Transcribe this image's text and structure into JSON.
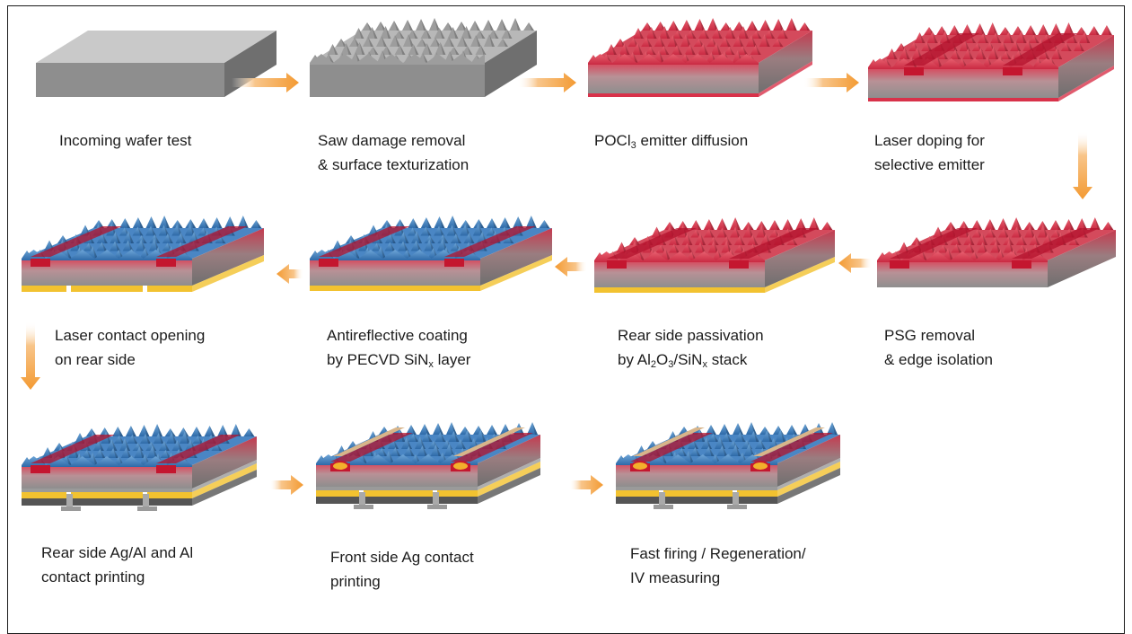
{
  "steps": [
    {
      "id": "incoming",
      "lines": [
        "Incoming wafer test"
      ]
    },
    {
      "id": "saw",
      "lines": [
        "Saw damage removal",
        "& surface texturization"
      ]
    },
    {
      "id": "pocl",
      "lines": [
        "POCl",
        "3",
        " emitter diffusion"
      ]
    },
    {
      "id": "laserdop",
      "lines": [
        "Laser doping for",
        "selective emitter"
      ]
    },
    {
      "id": "psg",
      "lines": [
        "PSG removal",
        "& edge isolation"
      ]
    },
    {
      "id": "rearpass",
      "lines": [
        "Rear side passivation",
        "by Al",
        "2",
        "O",
        "3",
        "/SiN",
        "x",
        " stack"
      ]
    },
    {
      "id": "arc",
      "lines": [
        "Antireflective coating",
        "by PECVD SiN",
        "x",
        " layer"
      ]
    },
    {
      "id": "lco",
      "lines": [
        "Laser contact opening",
        "on rear side"
      ]
    },
    {
      "id": "rearprint",
      "lines": [
        "Rear side Ag/Al and Al",
        "contact printing"
      ]
    },
    {
      "id": "frontprint",
      "lines": [
        "Front side Ag contact",
        "printing"
      ]
    },
    {
      "id": "firing",
      "lines": [
        "Fast firing / Regeneration/",
        "IV measuring"
      ]
    }
  ],
  "labels": {
    "incoming_1": "Incoming wafer test",
    "saw_1": "Saw damage removal",
    "saw_2": "& surface texturization",
    "pocl_a": "POCl",
    "pocl_sub": "3",
    "pocl_b": " emitter diffusion",
    "laserdop_1": "Laser doping for",
    "laserdop_2": "selective emitter",
    "psg_1": "PSG removal",
    "psg_2": "& edge isolation",
    "rearpass_1": "Rear side passivation",
    "rearpass_2a": "by Al",
    "rearpass_2s1": "2",
    "rearpass_2b": "O",
    "rearpass_2s2": "3",
    "rearpass_2c": "/SiN",
    "rearpass_2s3": "x",
    "rearpass_2d": " stack",
    "arc_1": "Antireflective coating",
    "arc_2a": "by PECVD SiN",
    "arc_2s": "x",
    "arc_2b": " layer",
    "lco_1": "Laser contact opening",
    "lco_2": "on rear side",
    "rearprint_1": "Rear side Ag/Al and Al",
    "rearprint_2": "contact printing",
    "frontprint_1": "Front side Ag contact",
    "frontprint_2": "printing",
    "firing_1": "Fast firing / Regeneration/",
    "firing_2": "IV measuring"
  },
  "colors": {
    "wafer_top": "#c9c9c9",
    "wafer_front": "#8e8e8e",
    "wafer_side": "#6f6f6f",
    "emitter_red": "#d8324a",
    "arc_blue": "#3d7ec0",
    "rear_yellow": "#f2c230",
    "rear_dark": "#555555",
    "contact_ag": "#d8b58a",
    "arrow_orange": "#f5a044"
  }
}
